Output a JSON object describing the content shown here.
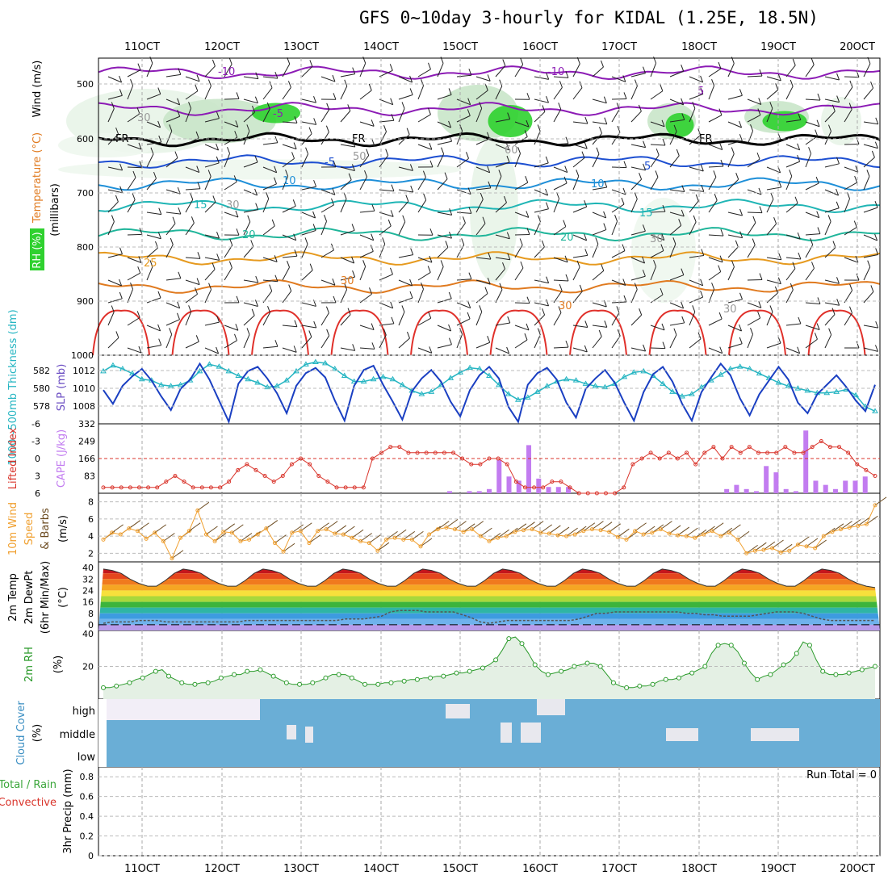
{
  "title": "GFS 0~10day 3-hourly for KIDAL (1.25E, 18.5N)",
  "dates": [
    "11OCT",
    "12OCT",
    "13OCT",
    "14OCT",
    "15OCT",
    "16OCT",
    "17OCT",
    "18OCT",
    "19OCT",
    "20OCT"
  ],
  "colors": {
    "rh_green": "#2fd12f",
    "temp_purple": "#8c1bb5",
    "temp_blue": "#1d4fd1",
    "temp_cyan": "#1fb5b5",
    "temp_orange": "#e69a1f",
    "temp_red": "#e0302a",
    "slp_blue": "#1a3fc2",
    "thick_cyan": "#25b5c2",
    "li_red": "#d9342b",
    "cape_violet": "#c27cf0",
    "wind_orange": "#f0a030",
    "rh2m_green": "#2a9a2a",
    "cloud_blue": "#6aaed6"
  },
  "panels": {
    "upper": {
      "label_rh": "RH (%)",
      "label_temp": "Temperature (°C)",
      "label_wind": "Wind (m/s)",
      "label_axis": "(millibars)",
      "y_ticks": [
        "500",
        "600",
        "700",
        "800",
        "900",
        "1000"
      ],
      "contour_labels": [
        "-10",
        "-5",
        "FR",
        "-5",
        "10",
        "15",
        "20",
        "25",
        "30",
        "30",
        "-10",
        "5",
        "FR",
        "5",
        "10",
        "15",
        "20",
        "FR",
        "30",
        "50",
        "60",
        "30",
        "30",
        "30"
      ]
    },
    "slp": {
      "label_thick": "1000~500mb Thickness (dm)",
      "label_slp": "SLP (mb)",
      "left_ticks": [
        "582",
        "580",
        "578"
      ],
      "right_ticks": [
        "1012",
        "1010",
        "1008"
      ]
    },
    "li": {
      "label_li": "Lifted Index",
      "label_cape": "CAPE (J/kg)",
      "left_ticks": [
        "-6",
        "-3",
        "0",
        "3",
        "6"
      ],
      "right_ticks": [
        "332",
        "249",
        "166",
        "83"
      ]
    },
    "wind10": {
      "label_a": "10m Wind",
      "label_b": "Speed",
      "label_c": "& Barbs",
      "label_unit": "(m/s)",
      "ticks": [
        "8",
        "6",
        "4",
        "2"
      ]
    },
    "temp2m": {
      "label_a": "2m Temp",
      "label_b": "2m DewPt",
      "label_c": "(6hr Min/Max)",
      "label_unit": "(°C)",
      "ticks": [
        "40",
        "32",
        "24",
        "16",
        "8",
        "0"
      ]
    },
    "rh2m": {
      "label_a": "2m RH",
      "label_unit": "(%)",
      "ticks": [
        "40",
        "20"
      ]
    },
    "cloud": {
      "label_a": "Cloud Cover",
      "label_unit": "(%)",
      "ticks": [
        "high",
        "middle",
        "low"
      ]
    },
    "precip": {
      "label_a": "Total / Rain",
      "label_b": "Convective",
      "label_c": "3hr Precip (mm)",
      "ticks": [
        "0.8",
        "0.6",
        "0.4",
        "0.2",
        "0"
      ],
      "run_total": "Run Total = 0"
    }
  },
  "chart_data": [
    {
      "type": "line",
      "title": "",
      "panel": "SLP and 1000~500mb Thickness",
      "x": "3-hourly steps from 10OCT 12Z to 20OCT 12Z",
      "series": [
        {
          "name": "SLP (mb)",
          "values": [
            1010.2,
            1008.9,
            1010.6,
            1011.5,
            1012.2,
            1011.1,
            1009.6,
            1008.3,
            1010.3,
            1011.2,
            1012.7,
            1011.2,
            1009.2,
            1007.2,
            1010.8,
            1012.0,
            1012.4,
            1011.3,
            1009.9,
            1008.0,
            1010.6,
            1011.8,
            1012.3,
            1011.4,
            1009.2,
            1007.3,
            1010.6,
            1012.1,
            1012.5,
            1010.7,
            1009.1,
            1007.4,
            1010.1,
            1011.3,
            1012.1,
            1011.0,
            1009.1,
            1007.7,
            1010.2,
            1011.6,
            1012.4,
            1011.3,
            1008.6,
            1007.2,
            1010.7,
            1011.8,
            1012.3,
            1011.2,
            1009.0,
            1007.6,
            1010.3,
            1011.3,
            1012.1,
            1010.9,
            1009.0,
            1007.3,
            1010.0,
            1011.7,
            1012.4,
            1011.0,
            1008.9,
            1007.3,
            1010.0,
            1011.4,
            1012.7,
            1011.6,
            1009.4,
            1007.8,
            1009.8,
            1011.1,
            1012.4,
            1011.2,
            1009.0,
            1008.0,
            1009.8,
            1010.7,
            1011.6,
            1010.5,
            1009.2,
            1008.2,
            1010.7
          ]
        },
        {
          "name": "1000~500mb Thickness (dm)",
          "values": [
            581.6,
            582.1,
            581.8,
            581.4,
            580.9,
            580.8,
            580.4,
            580.3,
            580.4,
            580.8,
            581.6,
            582.2,
            582.0,
            581.6,
            581.2,
            580.9,
            580.6,
            580.2,
            580.3,
            580.8,
            581.6,
            582.2,
            582.4,
            582.3,
            581.8,
            581.2,
            580.7,
            580.7,
            580.9,
            581.1,
            580.9,
            580.4,
            579.9,
            579.6,
            579.8,
            580.4,
            581.0,
            581.5,
            581.9,
            581.8,
            581.2,
            580.4,
            579.6,
            579.1,
            579.3,
            579.8,
            580.3,
            580.7,
            580.9,
            580.8,
            580.5,
            580.3,
            580.2,
            580.5,
            581.1,
            581.5,
            581.6,
            581.2,
            580.5,
            579.8,
            579.4,
            579.6,
            580.2,
            580.8,
            581.3,
            581.8,
            582.0,
            581.8,
            581.4,
            581.0,
            580.6,
            580.3,
            580.1,
            579.9,
            579.7,
            579.7,
            579.8,
            580.0,
            579.5,
            578.5,
            578.1
          ]
        }
      ],
      "ylim_slp": [
        1007,
        1013.5
      ],
      "ylim_thick": [
        577,
        583
      ]
    },
    {
      "type": "bar",
      "title": "",
      "panel": "Lifted Index and CAPE",
      "series": [
        {
          "name": "Lifted Index",
          "values": [
            5,
            5,
            5,
            5,
            5,
            5,
            5,
            4,
            3,
            4,
            5,
            5,
            5,
            5,
            4,
            2,
            1,
            2,
            3,
            4,
            3,
            1,
            0,
            1,
            3,
            4,
            5,
            5,
            5,
            5,
            0,
            -1,
            -2,
            -2,
            -1,
            -1,
            -1,
            -1,
            -1,
            -1,
            0,
            1,
            1,
            0,
            0,
            1,
            4,
            5,
            5,
            5,
            4,
            4,
            5,
            6,
            6,
            6,
            6,
            6,
            5,
            1,
            0,
            -1,
            0,
            -1,
            0,
            -1,
            1,
            -1,
            -2,
            0,
            -2,
            -1,
            -2,
            -1,
            -1,
            -1,
            -2,
            -1,
            -1,
            -2,
            -3,
            -2,
            -2,
            -1,
            1,
            2,
            3
          ]
        },
        {
          "name": "CAPE (J/kg)",
          "values": [
            0,
            0,
            0,
            0,
            0,
            0,
            0,
            0,
            0,
            0,
            0,
            0,
            0,
            0,
            0,
            0,
            0,
            0,
            0,
            0,
            0,
            0,
            0,
            0,
            0,
            0,
            0,
            0,
            0,
            0,
            0,
            0,
            0,
            0,
            0,
            10,
            0,
            10,
            10,
            20,
            160,
            80,
            60,
            230,
            70,
            30,
            30,
            30,
            0,
            0,
            0,
            0,
            0,
            0,
            0,
            0,
            0,
            0,
            0,
            0,
            0,
            0,
            0,
            20,
            40,
            20,
            10,
            130,
            100,
            20,
            10,
            300,
            60,
            40,
            20,
            60,
            60,
            80,
            0
          ]
        }
      ],
      "ylim_li": [
        6,
        -6
      ],
      "ylim_cape": [
        0,
        332
      ],
      "reference_line": 0
    },
    {
      "type": "line",
      "title": "",
      "panel": "10m Wind Speed",
      "series": [
        {
          "name": "10m Wind Speed (m/s)",
          "values": [
            3.6,
            4.4,
            4.2,
            4.9,
            4.6,
            3.7,
            4.4,
            3.4,
            1.4,
            3.8,
            4.6,
            7.0,
            4.2,
            3.4,
            4.5,
            4.4,
            3.4,
            3.6,
            4.2,
            4.9,
            3.2,
            2.2,
            4.4,
            4.6,
            3.2,
            4.6,
            4.8,
            4.3,
            4.2,
            3.8,
            3.4,
            3.2,
            2.3,
            3.6,
            3.8,
            3.6,
            3.6,
            2.8,
            4.2,
            4.8,
            5.0,
            4.8,
            4.5,
            4.8,
            4.0,
            3.4,
            3.8,
            4.0,
            4.5,
            4.7,
            4.8,
            4.4,
            4.3,
            4.1,
            4.0,
            4.2,
            4.6,
            4.8,
            4.7,
            4.5,
            3.9,
            3.6,
            4.6,
            4.2,
            4.4,
            4.8,
            4.3,
            4.1,
            4.0,
            3.8,
            4.2,
            4.6,
            4.0,
            4.4,
            3.6,
            2.0,
            2.3,
            2.4,
            2.6,
            2.1,
            2.3,
            3.0,
            2.8,
            2.6,
            4.0,
            4.5,
            4.8,
            5.0,
            5.2,
            5.4,
            7.6
          ]
        }
      ],
      "ylim": [
        1,
        9
      ]
    },
    {
      "type": "area",
      "title": "",
      "panel": "2m Temp and DewPt",
      "series": [
        {
          "name": "2m Temp (°C)",
          "values": [
            39,
            38,
            36,
            32,
            29,
            27,
            27,
            31,
            36,
            39,
            38,
            36,
            32,
            29,
            27,
            27,
            31,
            36,
            39,
            38,
            36,
            32,
            29,
            27,
            27,
            31,
            36,
            39,
            38,
            36,
            32,
            29,
            27,
            27,
            31,
            36,
            39,
            38,
            36,
            32,
            29,
            27,
            27,
            31,
            36,
            39,
            38,
            36,
            32,
            29,
            27,
            27,
            31,
            36,
            39,
            38,
            36,
            32,
            29,
            27,
            27,
            31,
            36,
            39,
            38,
            36,
            32,
            29,
            27,
            27,
            31,
            36,
            39,
            38,
            36,
            32,
            29,
            27,
            27,
            31,
            36,
            39,
            38,
            36,
            32,
            29,
            27,
            26
          ]
        },
        {
          "name": "2m DewPt (°C)",
          "values": [
            1,
            2,
            2,
            2,
            3,
            3,
            3,
            2,
            2,
            2,
            2,
            2,
            2,
            2,
            2,
            2,
            3,
            3,
            3,
            3,
            3,
            3,
            3,
            3,
            3,
            3,
            3,
            4,
            4,
            4,
            5,
            6,
            9,
            10,
            10,
            10,
            9,
            9,
            9,
            9,
            7,
            5,
            2,
            1,
            2,
            3,
            3,
            3,
            3,
            3,
            3,
            3,
            3,
            4,
            6,
            8,
            8,
            9,
            9,
            9,
            9,
            9,
            9,
            9,
            9,
            8,
            8,
            7,
            7,
            6,
            6,
            6,
            6,
            7,
            8,
            9,
            9,
            9,
            8,
            6,
            4,
            3,
            3,
            3,
            3,
            3,
            3
          ]
        }
      ],
      "ylim": [
        -4,
        44
      ]
    },
    {
      "type": "area",
      "title": "",
      "panel": "2m RH",
      "series": [
        {
          "name": "2m RH (%)",
          "values": [
            7,
            7,
            8,
            9,
            10,
            12,
            13,
            15,
            17,
            18,
            14,
            12,
            10,
            9,
            9,
            10,
            10,
            11,
            13,
            14,
            15,
            15,
            17,
            17,
            18,
            16,
            14,
            12,
            10,
            9,
            9,
            9,
            10,
            11,
            13,
            15,
            15,
            15,
            13,
            11,
            9,
            9,
            9,
            10,
            10,
            11,
            11,
            12,
            12,
            13,
            13,
            14,
            14,
            15,
            16,
            16,
            17,
            18,
            19,
            21,
            24,
            30,
            37,
            38,
            34,
            28,
            21,
            17,
            15,
            16,
            17,
            18,
            20,
            21,
            22,
            22,
            20,
            15,
            10,
            8,
            7,
            7,
            8,
            8,
            9,
            11,
            12,
            12,
            13,
            15,
            16,
            18,
            20,
            28,
            33,
            34,
            33,
            29,
            22,
            16,
            12,
            14,
            15,
            18,
            21,
            23,
            28,
            35,
            33,
            24,
            17,
            15,
            15,
            15,
            16,
            17,
            18,
            19,
            20
          ]
        }
      ],
      "ylim": [
        0,
        42
      ]
    }
  ]
}
